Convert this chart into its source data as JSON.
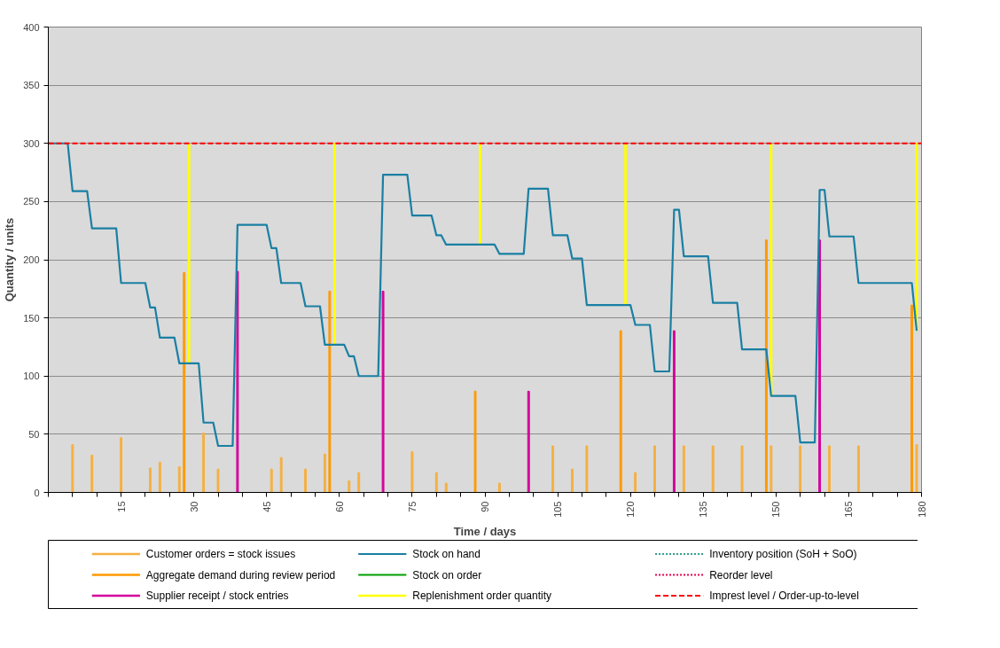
{
  "chart_data": {
    "type": "bar",
    "xlabel": "Time / days",
    "ylabel": "Quantity / units",
    "xlim": [
      0,
      180
    ],
    "ylim": [
      0,
      400
    ],
    "xticks": [
      {
        "value": 0,
        "label": null
      },
      {
        "value": 5,
        "label": null
      },
      {
        "value": 10,
        "label": null
      },
      15,
      {
        "value": 20,
        "label": null
      },
      {
        "value": 25,
        "label": null
      },
      30,
      {
        "value": 35,
        "label": null
      },
      {
        "value": 40,
        "label": null
      },
      45,
      {
        "value": 50,
        "label": null
      },
      {
        "value": 55,
        "label": null
      },
      60,
      {
        "value": 65,
        "label": null
      },
      {
        "value": 70,
        "label": null
      },
      75,
      {
        "value": 80,
        "label": null
      },
      {
        "value": 85,
        "label": null
      },
      90,
      {
        "value": 95,
        "label": null
      },
      {
        "value": 100,
        "label": null
      },
      105,
      {
        "value": 110,
        "label": null
      },
      {
        "value": 115,
        "label": null
      },
      120,
      {
        "value": 125,
        "label": null
      },
      {
        "value": 130,
        "label": null
      },
      135,
      {
        "value": 140,
        "label": null
      },
      {
        "value": 145,
        "label": null
      },
      150,
      {
        "value": 155,
        "label": null
      },
      {
        "value": 160,
        "label": null
      },
      165,
      {
        "value": 170,
        "label": null
      },
      {
        "value": 175,
        "label": null
      },
      180
    ],
    "yticks": [
      0,
      50,
      100,
      150,
      200,
      250,
      300,
      350,
      400
    ],
    "grid": "y",
    "legend": "bottom",
    "series": [
      {
        "name": "Customer orders = stock issues",
        "color": "#f5b041",
        "x": [
          5,
          9,
          15,
          21,
          23,
          27,
          32,
          35,
          46,
          48,
          53,
          57,
          62,
          64,
          75,
          80,
          82,
          93,
          104,
          108,
          111,
          121,
          125,
          131,
          137,
          143,
          149,
          155,
          161,
          167,
          179
        ],
        "values": [
          41,
          32,
          47,
          21,
          26,
          22,
          51,
          20,
          20,
          30,
          20,
          33,
          10,
          17,
          35,
          17,
          8,
          8,
          40,
          20,
          40,
          17,
          40,
          40,
          40,
          40,
          40,
          40,
          40,
          40,
          41
        ]
      },
      {
        "name": "Stock on hand",
        "type": "line",
        "color": "#1a7fa3",
        "line_style": "solid",
        "x": [
          0,
          4,
          5,
          8,
          9,
          14,
          15,
          20,
          21,
          22,
          23,
          26,
          27,
          31,
          32,
          34,
          35,
          38,
          39,
          45,
          46,
          47,
          48,
          52,
          53,
          56,
          57,
          61,
          62,
          63,
          64,
          68,
          69,
          74,
          75,
          79,
          80,
          81,
          82,
          92,
          93,
          98,
          99,
          103,
          104,
          107,
          108,
          110,
          111,
          120,
          121,
          124,
          125,
          128,
          129,
          130,
          131,
          136,
          137,
          142,
          143,
          148,
          149,
          154,
          155,
          158,
          159,
          160,
          161,
          166,
          167,
          178,
          179
        ],
        "values": [
          300,
          300,
          259,
          259,
          227,
          227,
          180,
          180,
          159,
          159,
          133,
          133,
          111,
          111,
          60,
          60,
          40,
          40,
          230,
          230,
          210,
          210,
          180,
          180,
          160,
          160,
          127,
          127,
          117,
          117,
          100,
          100,
          273,
          273,
          238,
          238,
          221,
          221,
          213,
          213,
          205,
          205,
          261,
          261,
          221,
          221,
          201,
          201,
          161,
          161,
          144,
          144,
          104,
          104,
          243,
          243,
          203,
          203,
          163,
          163,
          123,
          123,
          83,
          83,
          43,
          43,
          260,
          260,
          220,
          220,
          180,
          180,
          139
        ]
      },
      {
        "name": "Inventory position (SoH + SoO)",
        "type": "line",
        "color": "#2e9e8a",
        "line_style": "dotted"
      },
      {
        "name": "Aggregate demand during review period",
        "type": "bar",
        "color": "#ff9900",
        "x": [
          28,
          58,
          88,
          118,
          148,
          178
        ],
        "values": [
          189,
          173,
          87,
          139,
          217,
          161
        ]
      },
      {
        "name": "Stock on order",
        "type": "line",
        "color": "#00a000",
        "line_style": "solid"
      },
      {
        "name": "Reorder level",
        "type": "line",
        "color": "#e0004a",
        "line_style": "dotted"
      },
      {
        "name": "Supplier receipt / stock entries",
        "type": "bar",
        "color": "#d4009c",
        "x": [
          39,
          69,
          99,
          129,
          159
        ],
        "values": [
          190,
          173,
          87,
          139,
          217
        ]
      },
      {
        "name": "Replenishment  order quantity",
        "type": "bar",
        "color": "#ffff00",
        "x": [
          29,
          59,
          89,
          119,
          149,
          179
        ],
        "base": [
          111,
          127,
          213,
          161,
          83,
          139
        ],
        "values": [
          189,
          173,
          87,
          139,
          217,
          161
        ]
      }
    ],
    "ref_lines": [
      {
        "axis": "y",
        "value": 300,
        "label": "Imprest level / Order-up-to-level",
        "color": "#ff0000",
        "line_style": "dashed"
      }
    ]
  }
}
